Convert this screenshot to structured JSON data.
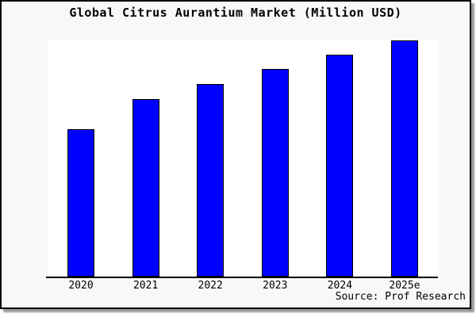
{
  "figure": {
    "colors": {
      "bar_fill": "#0000ff",
      "bar_edge": "#000000",
      "figure_background": "#f8f8f8",
      "plot_background": "#ffffff",
      "axis": "#000000",
      "text": "#000000",
      "frame_border": "#000000",
      "frame_shadow": "#999999"
    }
  },
  "chart_data": {
    "type": "bar",
    "title": "Global Citrus Aurantium Market (Million USD)",
    "categories": [
      "2020",
      "2021",
      "2022",
      "2023",
      "2024",
      "2025e"
    ],
    "values": [
      62.4,
      75.2,
      81.5,
      87.9,
      94.0,
      100.0
    ],
    "values_note": "relative bar heights, tallest bar (2025e) = 100; no numeric y-axis is shown in the image",
    "xlabel": "",
    "ylabel": "",
    "ylim": [
      0,
      100
    ],
    "grid": false,
    "legend": false,
    "annotation": "Source: Prof Research"
  }
}
